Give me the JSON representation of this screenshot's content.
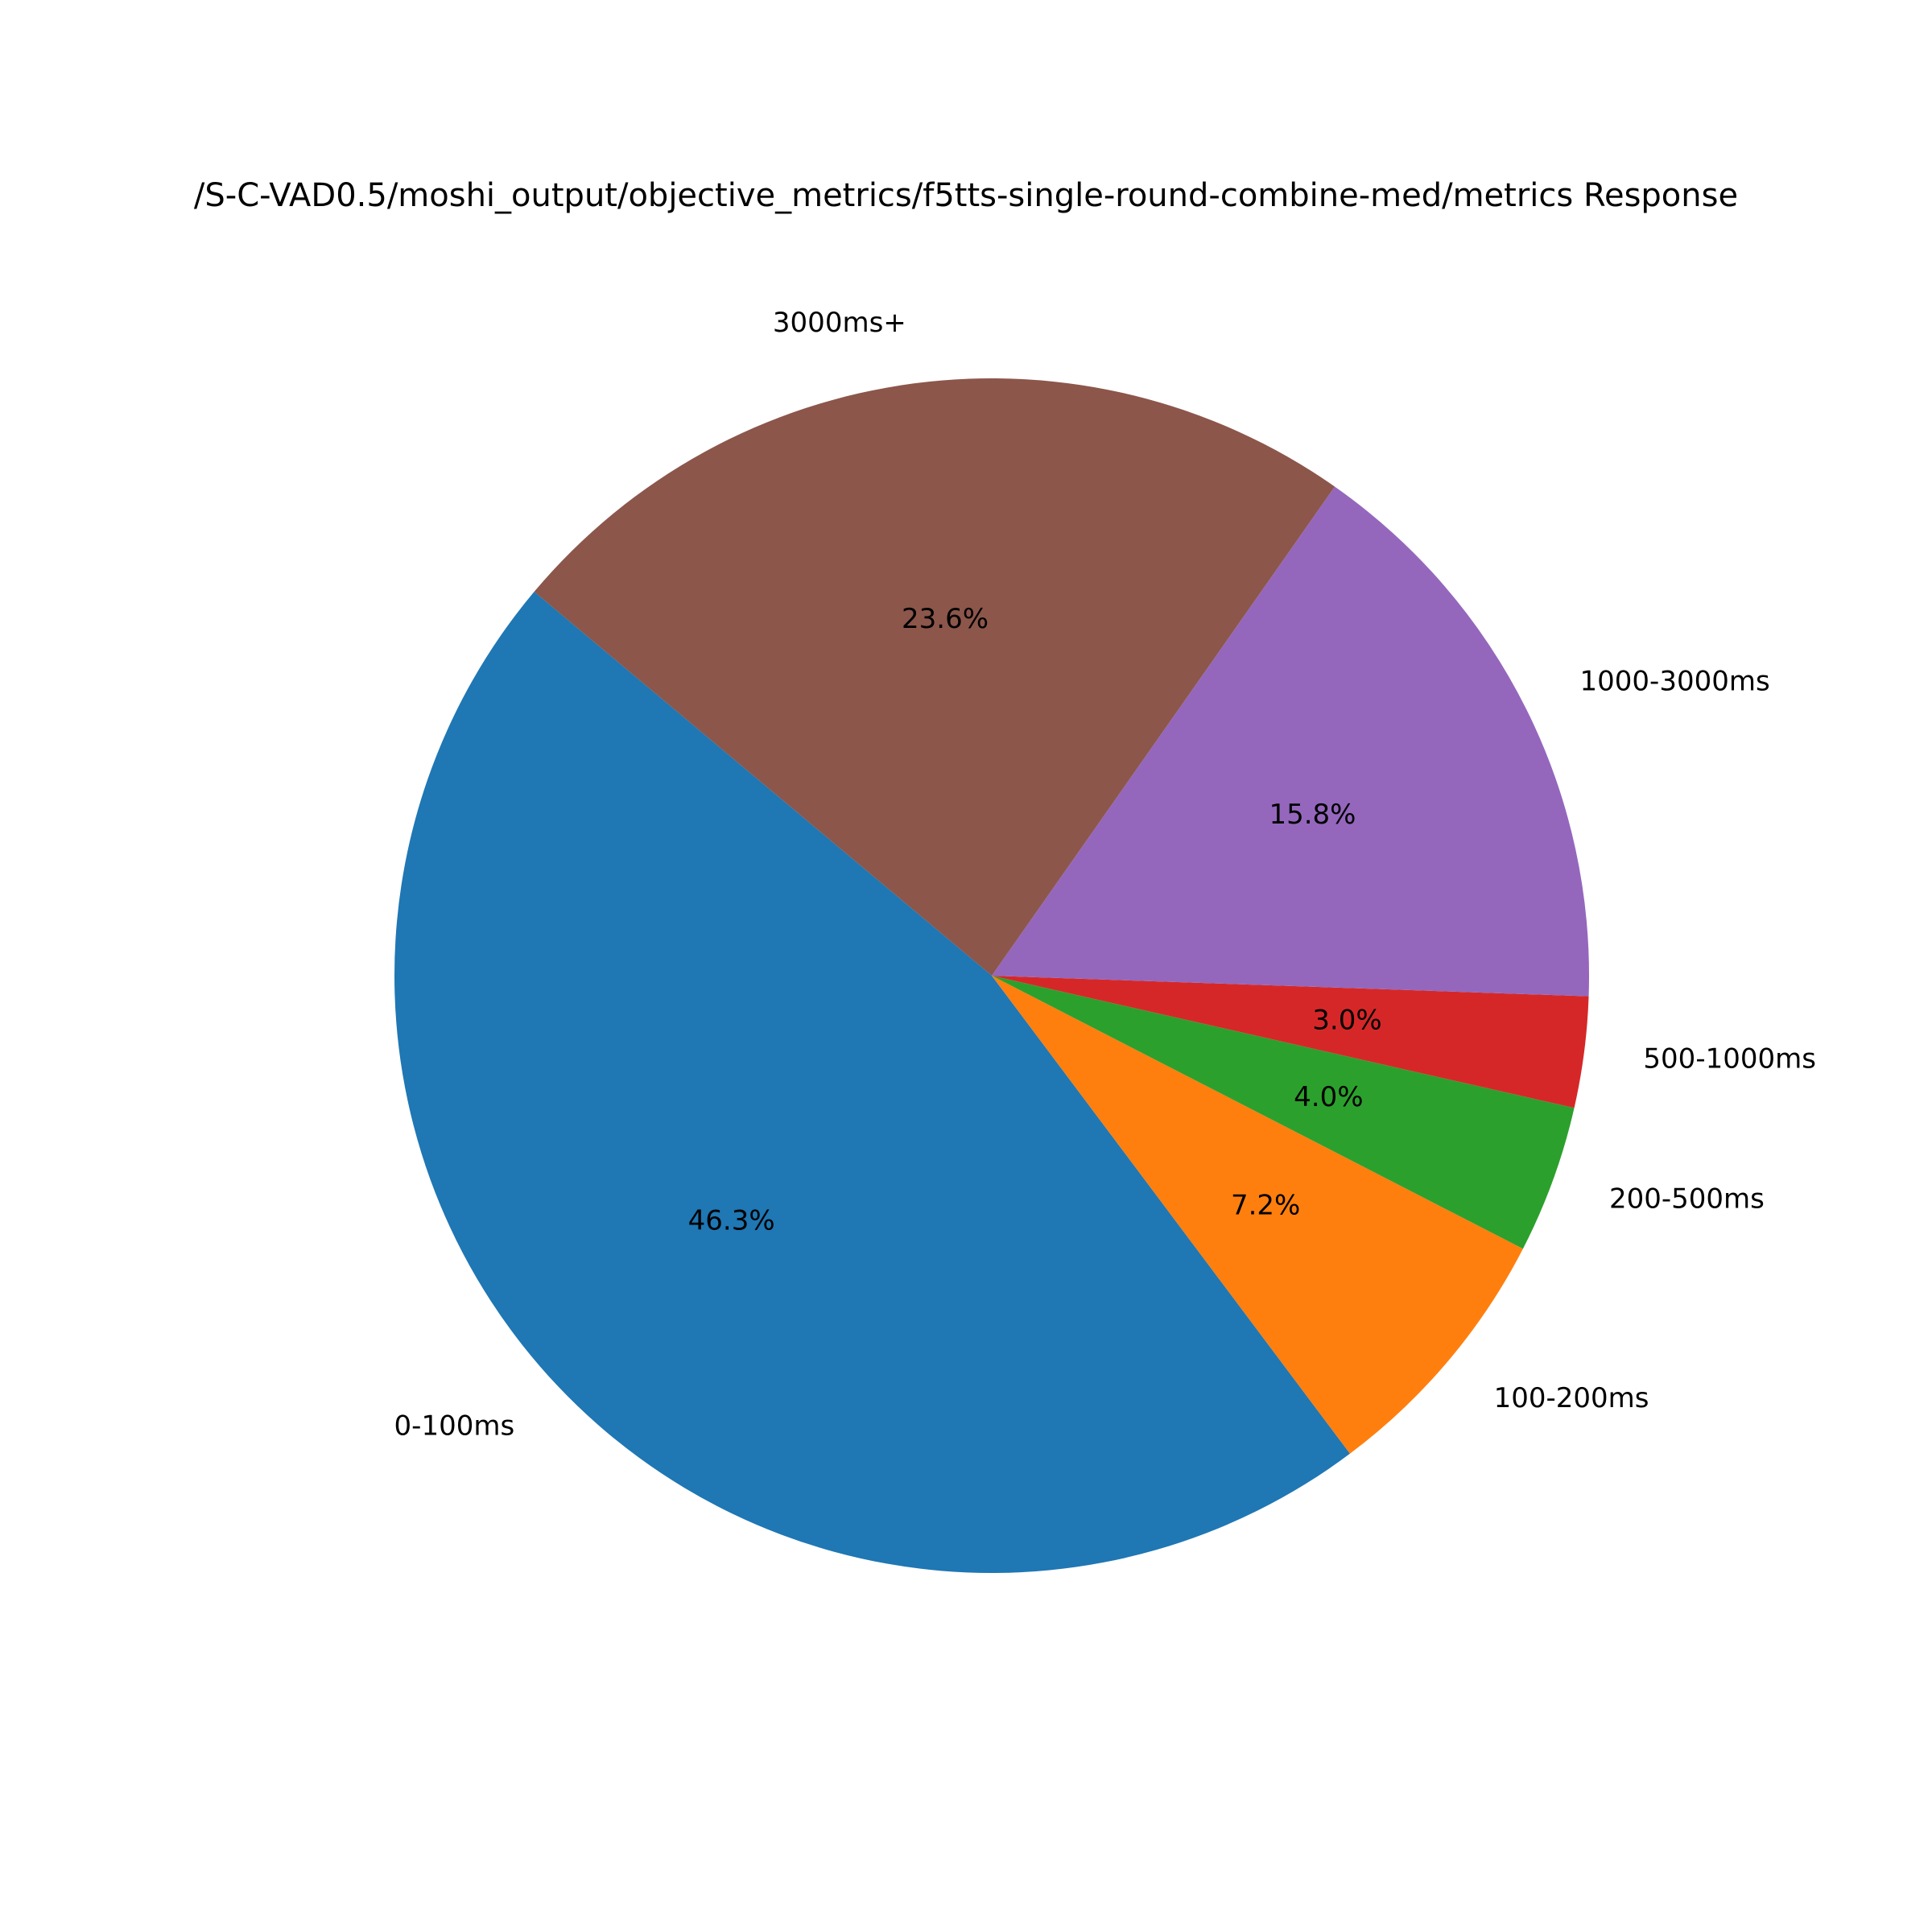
{
  "chart_data": {
    "type": "pie",
    "title": "/S-C-VAD0.5/moshi_output/objective_metrics/f5tts-single-round-combine-med/metrics Response",
    "categories": [
      "0-100ms",
      "100-200ms",
      "200-500ms",
      "500-1000ms",
      "1000-3000ms",
      "3000ms+"
    ],
    "values": [
      46.3,
      7.2,
      4.0,
      3.0,
      15.8,
      23.6
    ],
    "value_labels": [
      "46.3%",
      "7.2%",
      "4.0%",
      "3.0%",
      "15.8%",
      "23.6%"
    ],
    "colors": [
      "#1f77b4",
      "#ff7f0e",
      "#2ca02c",
      "#d62728",
      "#9467bd",
      "#8c564b"
    ],
    "start_angle": 140
  }
}
